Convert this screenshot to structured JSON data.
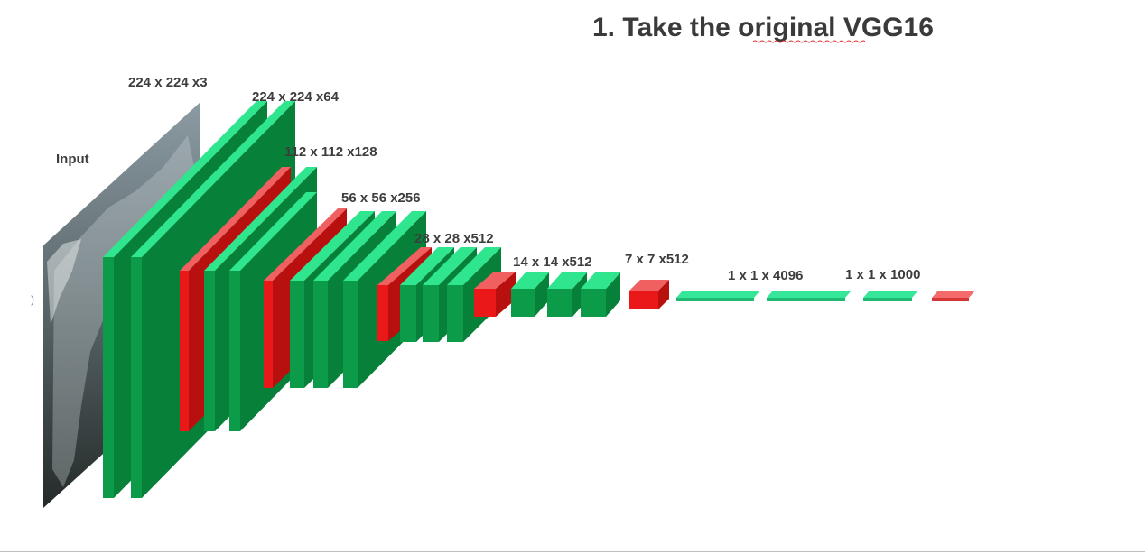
{
  "title": "1. Take the original VGG16",
  "labels": {
    "input": "Input",
    "input_dim": "224 x 224 x3",
    "conv1": "224 x 224 x64",
    "conv2": "112 x 112 x128",
    "conv3": "56 x 56 x256",
    "conv4": "28 x 28 x512",
    "conv5": "14 x 14 x512",
    "pool5": "7 x 7 x512",
    "fc": "1 x 1 x 4096",
    "out": "1 x 1 x 1000"
  },
  "colors": {
    "conv_front": "#0b9b49",
    "conv_side": "#07803a",
    "conv_top": "#2fe68f",
    "pool_front": "#ea1818",
    "pool_side": "#b80f0f",
    "pool_top": "#f06060",
    "fc_top": "#36e79a",
    "fc_front": "#1fb972",
    "out_top": "#f56a6a",
    "out_front": "#d43535"
  }
}
